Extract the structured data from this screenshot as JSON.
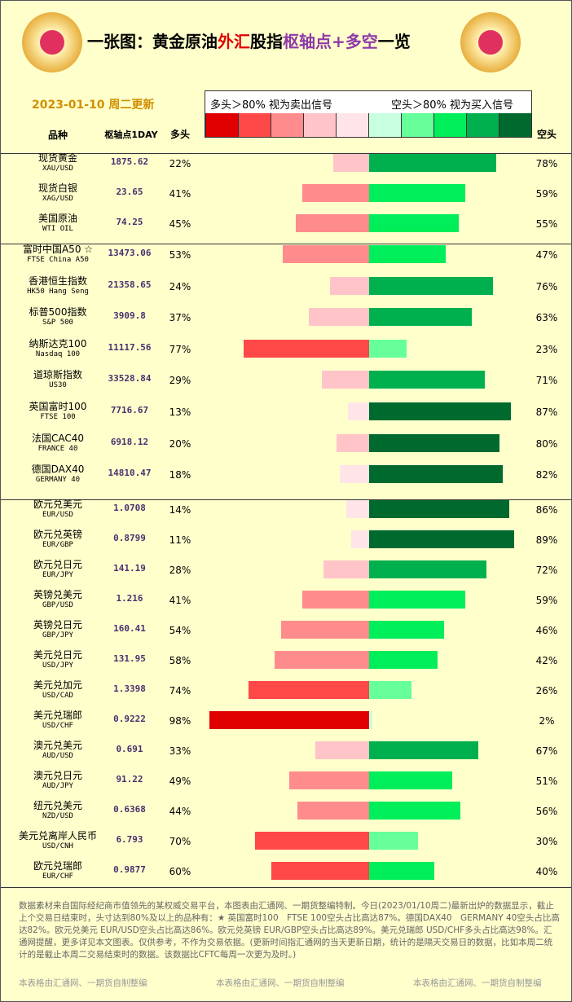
{
  "header": {
    "title": [
      {
        "text": "一张图：黄金原油",
        "color": "#000000"
      },
      {
        "text": "外汇",
        "color": "#e00000"
      },
      {
        "text": "股指",
        "color": "#000000"
      },
      {
        "text": "枢轴点+多空",
        "color": "#8e3aa8"
      },
      {
        "text": "一览",
        "color": "#000000"
      }
    ],
    "date": "2023-01-10 周二更新"
  },
  "legend": {
    "long_note": "多头＞80% 视为卖出信号",
    "short_note": "空头＞80% 视为买入信号",
    "swatches": [
      "#e00000",
      "#ff4848",
      "#ff8c8c",
      "#ffc4c8",
      "#ffe4e8",
      "#c8ffe0",
      "#66ff99",
      "#00ee5a",
      "#00b04f",
      "#006a2e"
    ]
  },
  "columns": {
    "name": "品种",
    "pivot": "枢轴点1DAY",
    "long": "多头",
    "short": "空头"
  },
  "groups": [
    {
      "rows": [
        {
          "name": "现货黄金",
          "code": "XAU/USD",
          "pivot": "1875.62",
          "long": {
            "value": 22,
            "label": "22%"
          },
          "short": {
            "value": 78,
            "label": "78%"
          }
        },
        {
          "name": "现货白银",
          "code": "XAG/USD",
          "pivot": "23.65",
          "long": {
            "value": 41,
            "label": "41%"
          },
          "short": {
            "value": 59,
            "label": "59%"
          }
        },
        {
          "name": "美国原油",
          "code": "WTI OIL",
          "pivot": "74.25",
          "long": {
            "value": 45,
            "label": "45%"
          },
          "short": {
            "value": 55,
            "label": "55%"
          }
        }
      ]
    },
    {
      "rows": [
        {
          "name": "富时中国A50 ☆",
          "code": "FTSE China A50",
          "pivot": "13473.06",
          "long": {
            "value": 53,
            "label": "53%"
          },
          "short": {
            "value": 47,
            "label": "47%"
          }
        },
        {
          "name": "香港恒生指数",
          "code": "HK50 Hang Seng",
          "pivot": "21358.65",
          "long": {
            "value": 24,
            "label": "24%"
          },
          "short": {
            "value": 76,
            "label": "76%"
          }
        },
        {
          "name": "标普500指数",
          "code": "S&P 500",
          "pivot": "3909.8",
          "long": {
            "value": 37,
            "label": "37%"
          },
          "short": {
            "value": 63,
            "label": "63%"
          }
        },
        {
          "name": "纳斯达克100",
          "code": "Nasdaq 100",
          "pivot": "11117.56",
          "long": {
            "value": 77,
            "label": "77%"
          },
          "short": {
            "value": 23,
            "label": "23%"
          }
        },
        {
          "name": "道琼斯指数",
          "code": "US30",
          "pivot": "33528.84",
          "long": {
            "value": 29,
            "label": "29%"
          },
          "short": {
            "value": 71,
            "label": "71%"
          }
        },
        {
          "name": "英国富时100",
          "code": "FTSE 100",
          "pivot": "7716.67",
          "long": {
            "value": 13,
            "label": "13%"
          },
          "short": {
            "value": 87,
            "label": "87%"
          }
        },
        {
          "name": "法国CAC40",
          "code": "FRANCE 40",
          "pivot": "6918.12",
          "long": {
            "value": 20,
            "label": "20%"
          },
          "short": {
            "value": 80,
            "label": "80%"
          }
        },
        {
          "name": "德国DAX40",
          "code": "GERMANY 40",
          "pivot": "14810.47",
          "long": {
            "value": 18,
            "label": "18%"
          },
          "short": {
            "value": 82,
            "label": "82%"
          }
        }
      ]
    },
    {
      "rows": [
        {
          "name": "欧元兑美元",
          "code": "EUR/USD",
          "pivot": "1.0708",
          "long": {
            "value": 14,
            "label": "14%"
          },
          "short": {
            "value": 86,
            "label": "86%"
          }
        },
        {
          "name": "欧元兑英镑",
          "code": "EUR/GBP",
          "pivot": "0.8799",
          "long": {
            "value": 11,
            "label": "11%"
          },
          "short": {
            "value": 89,
            "label": "89%"
          }
        },
        {
          "name": "欧元兑日元",
          "code": "EUR/JPY",
          "pivot": "141.19",
          "long": {
            "value": 28,
            "label": "28%"
          },
          "short": {
            "value": 72,
            "label": "72%"
          }
        },
        {
          "name": "英镑兑美元",
          "code": "GBP/USD",
          "pivot": "1.216",
          "long": {
            "value": 41,
            "label": "41%"
          },
          "short": {
            "value": 59,
            "label": "59%"
          }
        },
        {
          "name": "英镑兑日元",
          "code": "GBP/JPY",
          "pivot": "160.41",
          "long": {
            "value": 54,
            "label": "54%"
          },
          "short": {
            "value": 46,
            "label": "46%"
          }
        },
        {
          "name": "美元兑日元",
          "code": "USD/JPY",
          "pivot": "131.95",
          "long": {
            "value": 58,
            "label": "58%"
          },
          "short": {
            "value": 42,
            "label": "42%"
          }
        },
        {
          "name": "美元兑加元",
          "code": "USD/CAD",
          "pivot": "1.3398",
          "long": {
            "value": 74,
            "label": "74%"
          },
          "short": {
            "value": 26,
            "label": "26%"
          }
        },
        {
          "name": "美元兑瑞郎",
          "code": "USD/CHF",
          "pivot": "0.9222",
          "long": {
            "value": 98,
            "label": "98%"
          },
          "short": {
            "value": 2,
            "label": "2%"
          }
        },
        {
          "name": "澳元兑美元",
          "code": "AUD/USD",
          "pivot": "0.691",
          "long": {
            "value": 33,
            "label": "33%"
          },
          "short": {
            "value": 67,
            "label": "67%"
          }
        },
        {
          "name": "澳元兑日元",
          "code": "AUD/JPY",
          "pivot": "91.22",
          "long": {
            "value": 49,
            "label": "49%"
          },
          "short": {
            "value": 51,
            "label": "51%"
          }
        },
        {
          "name": "纽元兑美元",
          "code": "NZD/USD",
          "pivot": "0.6368",
          "long": {
            "value": 44,
            "label": "44%"
          },
          "short": {
            "value": 56,
            "label": "56%"
          }
        },
        {
          "name": "美元兑离岸人民币",
          "code": "USD/CNH",
          "pivot": "6.793",
          "long": {
            "value": 70,
            "label": "70%"
          },
          "short": {
            "value": 30,
            "label": "30%"
          }
        },
        {
          "name": "欧元兑瑞郎",
          "code": "EUR/CHF",
          "pivot": "0.9877",
          "long": {
            "value": 60,
            "label": "60%"
          },
          "short": {
            "value": 40,
            "label": "40%"
          }
        }
      ]
    }
  ],
  "footer": {
    "text": "数据素材来自国际经纪商市值领先的某权威交易平台，本图表由汇通网、一期货整编特制。今日(2023/01/10周二)最新出炉的数据显示，截止上个交易日结束时，头寸达到80%及以上的品种有：★ 英国富时100　FTSE 100空头占比高达87%。德国DAX40　GERMANY 40空头占比高达82%。欧元兑美元 EUR/USD空头占比高达86%。欧元兑英镑 EUR/GBP空头占比高达89%。美元兑瑞郎 USD/CHF多头占比高达98%。汇通网提醒，更多详见本文图表。仅供参考，不作为交易依据。(更新时间指汇通网的当天更新日期，统计的是隔天交易日的数据，比如本周二统计的是截止本周二交易结束时的数据。该数据比CFTC每周一次更为及时。)",
    "credit": "本表格由汇通网、一期货自制整编"
  }
}
